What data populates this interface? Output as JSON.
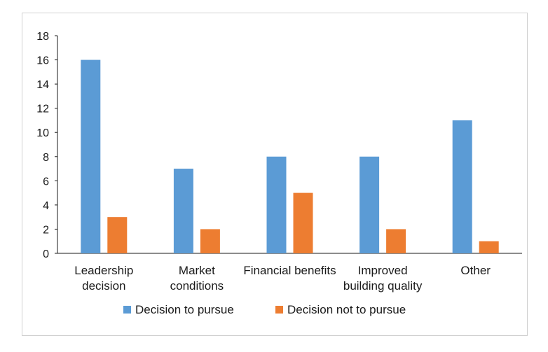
{
  "chart_data": {
    "type": "bar",
    "categories": [
      [
        "Leadership",
        "decision"
      ],
      [
        "Market",
        "conditions"
      ],
      [
        "Financial benefits"
      ],
      [
        "Improved",
        "building quality"
      ],
      [
        "Other"
      ]
    ],
    "series": [
      {
        "name": "Decision to pursue",
        "color": "#5b9bd5",
        "values": [
          16,
          7,
          8,
          8,
          11
        ]
      },
      {
        "name": "Decision not to pursue",
        "color": "#ed7d31",
        "values": [
          3,
          2,
          5,
          2,
          1
        ]
      }
    ],
    "ylim": [
      0,
      18
    ],
    "yticks": [
      "0",
      "2",
      "4",
      "6",
      "8",
      "10",
      "12",
      "14",
      "16",
      "18"
    ],
    "grid": false,
    "legend_position": "bottom"
  }
}
